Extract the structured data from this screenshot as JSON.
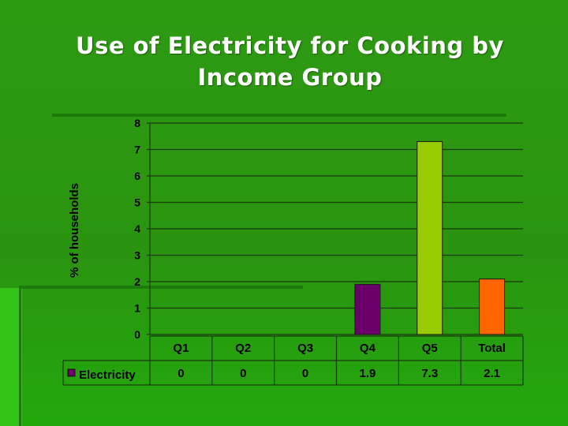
{
  "slide": {
    "title_line1": "Use of Electricity for Cooking by",
    "title_line2": "Income Group"
  },
  "colors": {
    "background": "#2e9a12",
    "gridline": "#1b3a10",
    "axis_text": "#000000"
  },
  "chart_data": {
    "type": "bar",
    "title": "",
    "xlabel": "",
    "ylabel": "% of households",
    "ylim": [
      0,
      8
    ],
    "yticks": [
      0,
      1,
      2,
      3,
      4,
      5,
      6,
      7,
      8
    ],
    "grid": true,
    "legend": "data-table",
    "categories": [
      "Q1",
      "Q2",
      "Q3",
      "Q4",
      "Q5",
      "Total"
    ],
    "series": [
      {
        "name": "Electricity",
        "values": [
          0,
          0,
          0,
          1.9,
          7.3,
          2.1
        ],
        "value_labels": [
          "0",
          "0",
          "0",
          "1.9",
          "7.3",
          "2.1"
        ],
        "colors": [
          "#6b006b",
          "#6b006b",
          "#6b006b",
          "#6b006b",
          "#99cc00",
          "#ff6600"
        ],
        "legend_color": "#6b006b"
      }
    ]
  }
}
